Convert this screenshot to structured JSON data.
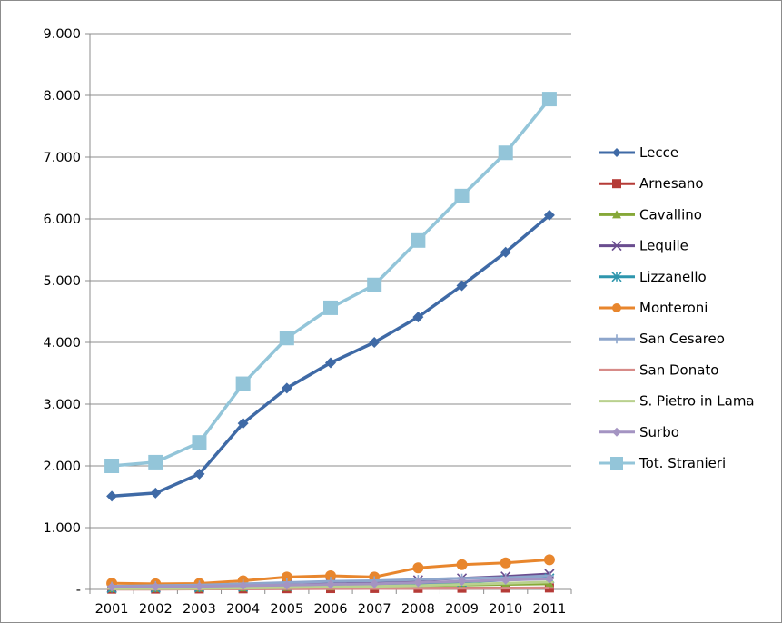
{
  "chart_data": {
    "type": "line",
    "title": "",
    "xlabel": "",
    "ylabel": "",
    "x": [
      "2001",
      "2002",
      "2003",
      "2004",
      "2005",
      "2006",
      "2007",
      "2008",
      "2009",
      "2010",
      "2011"
    ],
    "ylim": [
      0,
      9000
    ],
    "y_ticks": [
      0,
      1000,
      2000,
      3000,
      4000,
      5000,
      6000,
      7000,
      8000,
      9000
    ],
    "y_tick_labels": [
      "-",
      "1.000",
      "2.000",
      "3.000",
      "4.000",
      "5.000",
      "6.000",
      "7.000",
      "8.000",
      "9.000"
    ],
    "grid": "horizontal",
    "legend_position": "right",
    "series": [
      {
        "name": "Lecce",
        "color": "#3f6aa6",
        "marker": "diamond",
        "values": [
          1510,
          1560,
          1870,
          2690,
          3260,
          3670,
          4000,
          4410,
          4920,
          5460,
          6060
        ]
      },
      {
        "name": "Arnesano",
        "color": "#b53b37",
        "marker": "square",
        "values": [
          5,
          6,
          8,
          10,
          12,
          14,
          16,
          18,
          20,
          22,
          24
        ]
      },
      {
        "name": "Cavallino",
        "color": "#86a838",
        "marker": "triangle",
        "values": [
          15,
          18,
          22,
          28,
          35,
          42,
          50,
          60,
          70,
          80,
          90
        ]
      },
      {
        "name": "Lequile",
        "color": "#6a4d8f",
        "marker": "x",
        "values": [
          30,
          35,
          45,
          60,
          80,
          100,
          120,
          150,
          180,
          210,
          250
        ]
      },
      {
        "name": "Lizzanello",
        "color": "#2e96ad",
        "marker": "asterisk",
        "values": [
          20,
          25,
          30,
          40,
          55,
          70,
          85,
          100,
          120,
          150,
          180
        ]
      },
      {
        "name": "Monteroni",
        "color": "#e8862d",
        "marker": "circle",
        "values": [
          100,
          90,
          95,
          140,
          200,
          220,
          200,
          350,
          400,
          430,
          480
        ]
      },
      {
        "name": "San Cesareo",
        "color": "#8ea6cc",
        "marker": "plus",
        "values": [
          50,
          60,
          70,
          90,
          110,
          130,
          140,
          160,
          180,
          190,
          220
        ]
      },
      {
        "name": "San Donato",
        "color": "#d78b88",
        "marker": "dash",
        "values": [
          5,
          6,
          7,
          9,
          11,
          13,
          15,
          17,
          19,
          21,
          23
        ]
      },
      {
        "name": "S. Pietro in Lama",
        "color": "#b9d18e",
        "marker": "dash",
        "values": [
          10,
          12,
          15,
          20,
          30,
          40,
          50,
          60,
          80,
          100,
          120
        ]
      },
      {
        "name": "Surbo",
        "color": "#a494c2",
        "marker": "diamond",
        "values": [
          40,
          45,
          50,
          60,
          70,
          80,
          90,
          110,
          130,
          150,
          170
        ]
      },
      {
        "name": "Tot. Stranieri",
        "color": "#93c5d9",
        "marker": "square",
        "values": [
          2000,
          2060,
          2380,
          3330,
          4070,
          4560,
          4930,
          5650,
          6370,
          7070,
          7940
        ]
      }
    ]
  }
}
